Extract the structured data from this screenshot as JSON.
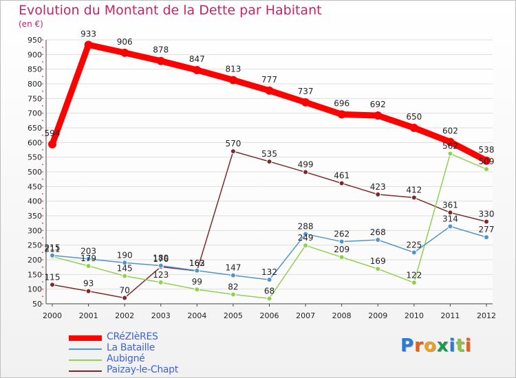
{
  "header": {
    "title": "Evolution du Montant de la Dette par Habitant",
    "subtitle": "(en €)"
  },
  "logo": {
    "text": "Proxiti"
  },
  "chart_data": {
    "type": "line",
    "title": "Evolution du Montant de la Dette par Habitant",
    "ylabel": "(en €)",
    "xlabel": "",
    "x": [
      "2000",
      "2001",
      "2002",
      "2003",
      "2004",
      "2005",
      "2006",
      "2007",
      "2008",
      "2009",
      "2010",
      "2011",
      "2012"
    ],
    "ylim": [
      50,
      950
    ],
    "yticks": [
      50,
      100,
      150,
      200,
      250,
      300,
      350,
      400,
      450,
      500,
      550,
      600,
      650,
      700,
      750,
      800,
      850,
      900,
      950
    ],
    "grid": "horizontal",
    "legend_position": "bottom-left",
    "series": [
      {
        "name": "CRéZIèRES",
        "color": "#ff0000",
        "values": [
          594,
          933,
          906,
          878,
          847,
          813,
          777,
          737,
          696,
          692,
          650,
          602,
          538
        ],
        "labels": [
          "594",
          "933",
          "906",
          "878",
          "847",
          "813",
          "777",
          "737",
          "696",
          "692",
          "650",
          "602",
          "538"
        ]
      },
      {
        "name": "La Bataille",
        "color": "#4f94cd",
        "values": [
          215,
          203,
          190,
          180,
          163,
          147,
          132,
          288,
          262,
          268,
          225,
          314,
          277
        ],
        "labels": [
          "215",
          "203",
          "190",
          "180",
          "163",
          "147",
          "132",
          "288",
          "262",
          "268",
          "225",
          "314",
          "277"
        ]
      },
      {
        "name": "Aubigné",
        "color": "#8fd14f",
        "values": [
          211,
          179,
          145,
          123,
          99,
          82,
          68,
          249,
          209,
          169,
          122,
          562,
          509
        ],
        "labels": [
          "211",
          "179",
          "145",
          "123",
          "99",
          "82",
          "68",
          "249",
          "209",
          "169",
          "122",
          "562",
          "509"
        ]
      },
      {
        "name": "Paizay-le-Chapt",
        "color": "#7a2a2a",
        "values": [
          115,
          93,
          70,
          176,
          162,
          570,
          535,
          499,
          461,
          423,
          412,
          361,
          330
        ],
        "labels": [
          "115",
          "93",
          "70",
          "176",
          "162",
          "570",
          "535",
          "499",
          "461",
          "423",
          "412",
          "361",
          "330"
        ]
      }
    ]
  }
}
